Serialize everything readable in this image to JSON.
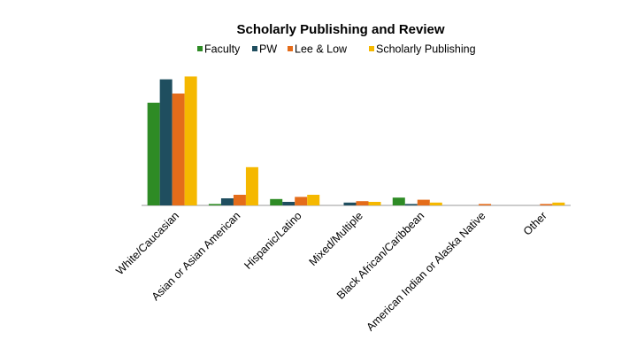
{
  "chart_data": {
    "type": "bar",
    "title": "Scholarly Publishing and Review",
    "categories": [
      "White/Caucasian",
      "Asian or Asian American",
      "Hispanic/Latino",
      "Mixed/Multiple",
      "Black African/Caribbean",
      "American Indian or Alaska Native",
      "Other"
    ],
    "series": [
      {
        "name": "Faculty",
        "color": "#2e8b25",
        "values": [
          72.5,
          1,
          4.5,
          0,
          5.5,
          0,
          0
        ]
      },
      {
        "name": "PW",
        "color": "#1f4e5f",
        "values": [
          89,
          5,
          2.5,
          2,
          1,
          0,
          0
        ]
      },
      {
        "name": "Lee & Low",
        "color": "#e46c1a",
        "values": [
          79,
          7.5,
          6,
          3,
          4,
          1,
          1
        ]
      },
      {
        "name": "Scholarly Publishing",
        "color": "#f5b800",
        "values": [
          91,
          27,
          7.5,
          2.5,
          2,
          0,
          2
        ]
      }
    ],
    "ylim": [
      0,
      100
    ]
  }
}
